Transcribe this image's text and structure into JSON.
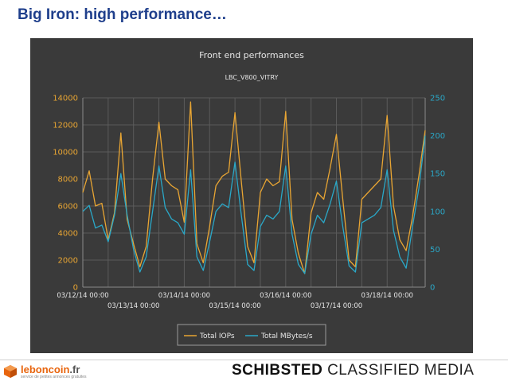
{
  "slide": {
    "title": "Big Iron: high performance…"
  },
  "footer": {
    "logo_name": "leboncoin",
    "logo_tld": ".fr",
    "logo_tagline": "service de petites annonces gratuites",
    "brand_bold": "SCHIBSTED",
    "brand_light": "CLASSIFIED MEDIA"
  },
  "colors": {
    "iops": "#e8a533",
    "mbytes": "#2aa8c8",
    "panel": "#3a3a3a",
    "title": "#1f3f8c"
  },
  "chart_data": {
    "type": "line",
    "title": "Front end performances",
    "subtitle": "LBC_V800_VITRY",
    "xlim": [
      "03/12/14 00:00",
      "03/18/14 18:00"
    ],
    "ylim_left": [
      0,
      14000
    ],
    "ylim_right": [
      0,
      250
    ],
    "y_ticks_left": [
      "0",
      "2000",
      "4000",
      "6000",
      "8000",
      "10000",
      "12000",
      "14000"
    ],
    "y_ticks_right": [
      "0",
      "50",
      "100",
      "150",
      "200",
      "250"
    ],
    "x_ticks_upper": [
      "03/12/14 00:00",
      "03/14/14 00:00",
      "03/16/14 00:00",
      "03/18/14 00:00"
    ],
    "x_ticks_lower": [
      "03/13/14 00:00",
      "03/15/14 00:00",
      "03/17/14 00:00"
    ],
    "grid": true,
    "legend_position": "bottom",
    "series": [
      {
        "name": "Total IOPs",
        "axis": "left",
        "points": [
          [
            "03/12/14 00:00",
            7000
          ],
          [
            "03/12/14 03:00",
            8600
          ],
          [
            "03/12/14 06:00",
            6000
          ],
          [
            "03/12/14 09:00",
            6200
          ],
          [
            "03/12/14 12:00",
            3500
          ],
          [
            "03/12/14 15:00",
            5500
          ],
          [
            "03/12/14 18:00",
            11400
          ],
          [
            "03/12/14 21:00",
            5000
          ],
          [
            "03/13/14 00:00",
            3200
          ],
          [
            "03/13/14 03:00",
            1500
          ],
          [
            "03/13/14 06:00",
            3000
          ],
          [
            "03/13/14 09:00",
            8000
          ],
          [
            "03/13/14 12:00",
            12200
          ],
          [
            "03/13/14 15:00",
            8000
          ],
          [
            "03/13/14 18:00",
            7500
          ],
          [
            "03/13/14 21:00",
            7200
          ],
          [
            "03/14/14 00:00",
            4800
          ],
          [
            "03/14/14 03:00",
            13700
          ],
          [
            "03/14/14 06:00",
            3200
          ],
          [
            "03/14/14 09:00",
            1800
          ],
          [
            "03/14/14 12:00",
            4500
          ],
          [
            "03/14/14 15:00",
            7500
          ],
          [
            "03/14/14 18:00",
            8200
          ],
          [
            "03/14/14 21:00",
            8500
          ],
          [
            "03/15/14 00:00",
            12900
          ],
          [
            "03/15/14 03:00",
            7800
          ],
          [
            "03/15/14 06:00",
            3000
          ],
          [
            "03/15/14 09:00",
            1800
          ],
          [
            "03/15/14 12:00",
            7000
          ],
          [
            "03/15/14 15:00",
            8000
          ],
          [
            "03/15/14 18:00",
            7500
          ],
          [
            "03/15/14 21:00",
            7800
          ],
          [
            "03/16/14 00:00",
            13000
          ],
          [
            "03/16/14 03:00",
            5000
          ],
          [
            "03/16/14 06:00",
            2500
          ],
          [
            "03/16/14 09:00",
            1000
          ],
          [
            "03/16/14 12:00",
            5500
          ],
          [
            "03/16/14 15:00",
            7000
          ],
          [
            "03/16/14 18:00",
            6500
          ],
          [
            "03/16/14 21:00",
            8800
          ],
          [
            "03/17/14 00:00",
            11300
          ],
          [
            "03/17/14 03:00",
            6500
          ],
          [
            "03/17/14 06:00",
            2000
          ],
          [
            "03/17/14 09:00",
            1500
          ],
          [
            "03/17/14 12:00",
            6500
          ],
          [
            "03/17/14 15:00",
            7000
          ],
          [
            "03/17/14 18:00",
            7500
          ],
          [
            "03/17/14 21:00",
            8000
          ],
          [
            "03/18/14 00:00",
            12700
          ],
          [
            "03/18/14 03:00",
            6000
          ],
          [
            "03/18/14 06:00",
            3500
          ],
          [
            "03/18/14 09:00",
            2700
          ],
          [
            "03/18/14 12:00",
            5200
          ],
          [
            "03/18/14 15:00",
            8200
          ],
          [
            "03/18/14 18:00",
            11600
          ]
        ]
      },
      {
        "name": "Total MBytes/s",
        "axis": "right",
        "points": [
          [
            "03/12/14 00:00",
            100
          ],
          [
            "03/12/14 03:00",
            108
          ],
          [
            "03/12/14 06:00",
            78
          ],
          [
            "03/12/14 09:00",
            82
          ],
          [
            "03/12/14 12:00",
            60
          ],
          [
            "03/12/14 15:00",
            95
          ],
          [
            "03/12/14 18:00",
            150
          ],
          [
            "03/12/14 21:00",
            95
          ],
          [
            "03/13/14 00:00",
            50
          ],
          [
            "03/13/14 03:00",
            20
          ],
          [
            "03/13/14 06:00",
            40
          ],
          [
            "03/13/14 09:00",
            100
          ],
          [
            "03/13/14 12:00",
            160
          ],
          [
            "03/13/14 15:00",
            105
          ],
          [
            "03/13/14 18:00",
            90
          ],
          [
            "03/13/14 21:00",
            85
          ],
          [
            "03/14/14 00:00",
            70
          ],
          [
            "03/14/14 03:00",
            155
          ],
          [
            "03/14/14 06:00",
            40
          ],
          [
            "03/14/14 09:00",
            22
          ],
          [
            "03/14/14 12:00",
            60
          ],
          [
            "03/14/14 15:00",
            100
          ],
          [
            "03/14/14 18:00",
            110
          ],
          [
            "03/14/14 21:00",
            105
          ],
          [
            "03/15/14 00:00",
            165
          ],
          [
            "03/15/14 03:00",
            95
          ],
          [
            "03/15/14 06:00",
            30
          ],
          [
            "03/15/14 09:00",
            22
          ],
          [
            "03/15/14 12:00",
            80
          ],
          [
            "03/15/14 15:00",
            95
          ],
          [
            "03/15/14 18:00",
            90
          ],
          [
            "03/15/14 21:00",
            100
          ],
          [
            "03/16/14 00:00",
            160
          ],
          [
            "03/16/14 03:00",
            70
          ],
          [
            "03/16/14 06:00",
            30
          ],
          [
            "03/16/14 09:00",
            18
          ],
          [
            "03/16/14 12:00",
            70
          ],
          [
            "03/16/14 15:00",
            95
          ],
          [
            "03/16/14 18:00",
            85
          ],
          [
            "03/16/14 21:00",
            110
          ],
          [
            "03/17/14 00:00",
            140
          ],
          [
            "03/17/14 03:00",
            80
          ],
          [
            "03/17/14 06:00",
            28
          ],
          [
            "03/17/14 09:00",
            20
          ],
          [
            "03/17/14 12:00",
            85
          ],
          [
            "03/17/14 15:00",
            90
          ],
          [
            "03/17/14 18:00",
            95
          ],
          [
            "03/17/14 21:00",
            105
          ],
          [
            "03/18/14 00:00",
            155
          ],
          [
            "03/18/14 03:00",
            75
          ],
          [
            "03/18/14 06:00",
            40
          ],
          [
            "03/18/14 09:00",
            25
          ],
          [
            "03/18/14 12:00",
            80
          ],
          [
            "03/18/14 15:00",
            130
          ],
          [
            "03/18/14 18:00",
            200
          ]
        ]
      }
    ]
  }
}
